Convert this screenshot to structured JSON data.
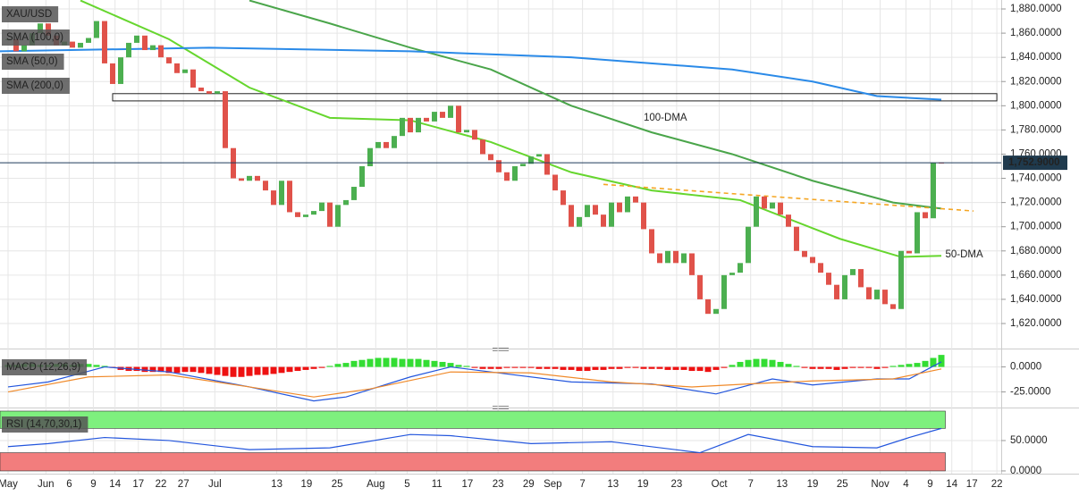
{
  "chart_data": [
    {
      "type": "candlestick",
      "title": "XAU/USD",
      "up_color": "#4caf50",
      "down_color": "#e0524a",
      "values": [
        1855,
        1845,
        1850,
        1860,
        1868,
        1858,
        1850,
        1853,
        1848,
        1852,
        1856,
        1870,
        1835,
        1818,
        1840,
        1852,
        1858,
        1846,
        1850,
        1840,
        1835,
        1827,
        1830,
        1815,
        1812,
        1810,
        1812,
        1765,
        1740,
        1738,
        1742,
        1738,
        1730,
        1718,
        1738,
        1712,
        1708,
        1710,
        1713,
        1720,
        1700,
        1718,
        1722,
        1733,
        1750,
        1765,
        1770,
        1765,
        1775,
        1790,
        1778,
        1790,
        1787,
        1795,
        1790,
        1800,
        1778,
        1780,
        1772,
        1760,
        1755,
        1745,
        1738,
        1750,
        1752,
        1758,
        1760,
        1743,
        1730,
        1718,
        1700,
        1708,
        1718,
        1710,
        1700,
        1720,
        1712,
        1725,
        1720,
        1698,
        1678,
        1670,
        1680,
        1670,
        1678,
        1660,
        1640,
        1628,
        1632,
        1660,
        1662,
        1670,
        1700,
        1725,
        1715,
        1720,
        1710,
        1700,
        1680,
        1675,
        1670,
        1662,
        1652,
        1640,
        1660,
        1665,
        1650,
        1640,
        1648,
        1636,
        1632,
        1680,
        1678,
        1712,
        1707,
        1753,
        1752.9
      ],
      "series": [
        {
          "name": "SMA (100,0)",
          "color": "#4aa54a",
          "x": [
            30,
            40,
            50,
            60,
            70,
            80,
            90,
            100,
            110,
            116
          ],
          "values": [
            1887,
            1868,
            1848,
            1830,
            1800,
            1778,
            1760,
            1738,
            1720,
            1715
          ]
        },
        {
          "name": "SMA (50,0)",
          "color": "#66d62e",
          "x": [
            9,
            20,
            30,
            40,
            50,
            60,
            70,
            80,
            91,
            103.4,
            111,
            116
          ],
          "values": [
            1887,
            1855,
            1815,
            1790,
            1788,
            1770,
            1745,
            1730,
            1722,
            1690,
            1675,
            1676
          ]
        },
        {
          "name": "SMA (200,0)",
          "color": "#2a8ae8",
          "x": [
            -1,
            25,
            50,
            70,
            90,
            100,
            108,
            116
          ],
          "values": [
            1845,
            1848,
            1845,
            1840,
            1830,
            1820,
            1808,
            1805
          ]
        }
      ],
      "annotations": [
        {
          "text": "100-DMA",
          "x": 79,
          "y": 1790,
          "color": "#4aa54a"
        },
        {
          "text": "50-DMA",
          "x": 116.5,
          "y": 1677,
          "color": "#55cc22"
        }
      ],
      "trendline": {
        "x": [
          74,
          120
        ],
        "values": [
          1735,
          1713
        ],
        "color": "#f5a623"
      },
      "zone": {
        "x": [
          13,
          122.9
        ],
        "y": [
          1804,
          1810
        ]
      },
      "last": {
        "value": 1752.9,
        "label": "1,752.9000"
      },
      "xlim": [
        -1,
        123
      ],
      "ylim": [
        1600.8,
        1887.4
      ],
      "yticks": [
        {
          "value": 1620,
          "label": "1,620.0000"
        },
        {
          "value": 1640,
          "label": "1,640.0000"
        },
        {
          "value": 1660,
          "label": "1,660.0000"
        },
        {
          "value": 1680,
          "label": "1,680.0000"
        },
        {
          "value": 1700,
          "label": "1,700.0000"
        },
        {
          "value": 1720,
          "label": "1,720.0000"
        },
        {
          "value": 1740,
          "label": "1,740.0000"
        },
        {
          "value": 1760,
          "label": "1,760.0000"
        },
        {
          "value": 1780,
          "label": "1,780.0000"
        },
        {
          "value": 1800,
          "label": "1,800.0000"
        },
        {
          "value": 1820,
          "label": "1,820.0000"
        },
        {
          "value": 1840,
          "label": "1,840.0000"
        },
        {
          "value": 1860,
          "label": "1,860.0000"
        },
        {
          "value": 1880,
          "label": "1,880.0000"
        }
      ]
    },
    {
      "type": "macd",
      "title": "MACD (12,26,9)",
      "pos_color": "#33dd33",
      "neg_color": "#ee1111",
      "histogram": [
        2,
        2,
        3,
        3,
        2,
        2,
        3,
        3,
        2,
        3,
        3,
        2,
        1,
        -1,
        -3,
        -4,
        -4,
        -5,
        -5,
        -5,
        -6,
        -6,
        -5,
        -5,
        -6,
        -7,
        -8,
        -9,
        -10,
        -10,
        -9,
        -8,
        -8,
        -7,
        -6,
        -5,
        -4,
        -3,
        -2,
        -1,
        1,
        3,
        4,
        6,
        7,
        8,
        9,
        9,
        9,
        8,
        8,
        8,
        7,
        6,
        5,
        4,
        2,
        1,
        -1,
        -2,
        -2,
        -2,
        -1,
        -1,
        -1,
        -1,
        -2,
        -2,
        -2,
        -3,
        -3,
        -4,
        -4,
        -3,
        -3,
        -2,
        -2,
        -1,
        -1,
        -2,
        -2,
        -2,
        -3,
        -3,
        -3,
        -4,
        -4,
        -5,
        -3,
        -1,
        2,
        5,
        7,
        8,
        8,
        7,
        5,
        3,
        1,
        -1,
        -2,
        -2,
        -2,
        -3,
        -2,
        -1,
        -1,
        -1,
        -2,
        -1,
        1,
        2,
        3,
        4,
        6,
        9,
        12
      ],
      "series": [
        {
          "color": "#2255dd",
          "x": [
            0,
            5,
            12,
            20,
            30,
            38,
            42,
            50,
            55,
            60,
            70,
            80,
            88,
            95,
            100,
            108,
            112,
            116
          ],
          "values": [
            -20,
            -15,
            0,
            -5,
            -20,
            -34,
            -30,
            -10,
            0,
            -5,
            -15,
            -17,
            -27,
            -12,
            -18,
            -12,
            -12,
            5
          ]
        },
        {
          "color": "#f08a2a",
          "x": [
            0,
            10,
            20,
            30,
            38,
            45,
            55,
            65,
            75,
            85,
            92,
            100,
            110,
            116
          ],
          "values": [
            -25,
            -10,
            -8,
            -20,
            -30,
            -22,
            -5,
            -6,
            -15,
            -20,
            -17,
            -14,
            -12,
            -2
          ]
        }
      ],
      "xlim": [
        -1,
        123
      ],
      "ylim": [
        -37,
        13.9
      ],
      "yticks": [
        {
          "value": 0,
          "label": "0.0000"
        },
        {
          "value": -25,
          "label": "-25.0000"
        }
      ]
    },
    {
      "type": "rsi",
      "title": "RSI (14,70,30,1)",
      "color": "#2255dd",
      "bands": [
        {
          "from": 70,
          "to": 98.5,
          "color": "#7ef07e"
        },
        {
          "from": 0,
          "to": 30,
          "color": "#f27d7d"
        }
      ],
      "x": [
        0,
        5,
        12,
        20,
        30,
        40,
        50,
        55,
        65,
        75,
        86,
        92,
        100,
        108,
        112,
        116
      ],
      "values": [
        40,
        45,
        55,
        50,
        35,
        38,
        60,
        58,
        45,
        48,
        30,
        60,
        40,
        38,
        55,
        70
      ],
      "xlim": [
        -1,
        123
      ],
      "ylim": [
        -4.5,
        98.5
      ],
      "yticks": [
        {
          "value": 50,
          "label": "50.0000"
        },
        {
          "value": 0,
          "label": "0.0000"
        }
      ],
      "xticks": [
        {
          "value": 0,
          "label": "May"
        },
        {
          "value": 4.7,
          "label": "Jun"
        },
        {
          "value": 7.6,
          "label": "6"
        },
        {
          "value": 10.6,
          "label": "9"
        },
        {
          "value": 13.3,
          "label": "14"
        },
        {
          "value": 16.2,
          "label": "17"
        },
        {
          "value": 19,
          "label": "22"
        },
        {
          "value": 21.8,
          "label": "27"
        },
        {
          "value": 25.7,
          "label": "Jul"
        },
        {
          "value": 33.4,
          "label": "13"
        },
        {
          "value": 37.1,
          "label": "19"
        },
        {
          "value": 40.9,
          "label": "25"
        },
        {
          "value": 45.7,
          "label": "Aug"
        },
        {
          "value": 49.6,
          "label": "5"
        },
        {
          "value": 53.3,
          "label": "11"
        },
        {
          "value": 57.1,
          "label": "17"
        },
        {
          "value": 60.9,
          "label": "23"
        },
        {
          "value": 64.7,
          "label": "29"
        },
        {
          "value": 67.7,
          "label": "Sep"
        },
        {
          "value": 71.4,
          "label": "7"
        },
        {
          "value": 75.2,
          "label": "13"
        },
        {
          "value": 78.9,
          "label": "19"
        },
        {
          "value": 83.1,
          "label": "23"
        },
        {
          "value": 88.4,
          "label": "Oct"
        },
        {
          "value": 92.3,
          "label": "7"
        },
        {
          "value": 96.2,
          "label": "13"
        },
        {
          "value": 100,
          "label": "19"
        },
        {
          "value": 103.7,
          "label": "25"
        },
        {
          "value": 108.4,
          "label": "Nov"
        },
        {
          "value": 111.6,
          "label": "4"
        },
        {
          "value": 114.6,
          "label": "9"
        },
        {
          "value": 117.3,
          "label": "14"
        },
        {
          "value": 119.8,
          "label": "17"
        },
        {
          "value": 122.9,
          "label": "22"
        }
      ]
    }
  ]
}
